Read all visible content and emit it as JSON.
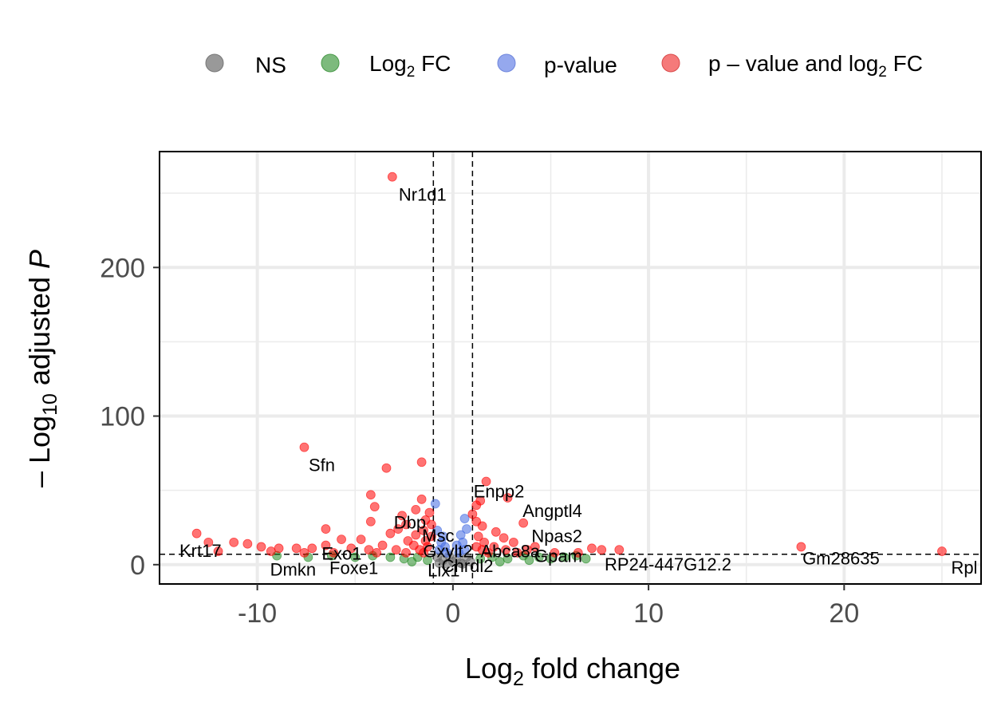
{
  "legend": {
    "items": [
      {
        "key": "ns",
        "label": "NS",
        "color": "#999999"
      },
      {
        "key": "fc",
        "label": "Log",
        "sub": "2",
        "tail": " FC",
        "color": "#5fa858"
      },
      {
        "key": "p",
        "label": "p-value",
        "color": "#8aa3e8"
      },
      {
        "key": "both",
        "label": "p – value and log",
        "sub": "2",
        "tail": " FC",
        "color": "#f07070"
      }
    ]
  },
  "axes": {
    "x_title": {
      "pre": "Log",
      "sub": "2",
      "post": " fold change"
    },
    "y_title": {
      "minus": "– ",
      "pre": "Log",
      "sub": "10",
      "post": " adjusted ",
      "italic": "P"
    }
  },
  "chart_data": {
    "type": "scatter",
    "xlim": [
      -15,
      27
    ],
    "ylim": [
      -13,
      278
    ],
    "x_ticks": [
      -10,
      0,
      10,
      20
    ],
    "x_tick_labels": [
      "-10",
      "0",
      "10",
      "20"
    ],
    "y_ticks": [
      0,
      100,
      200
    ],
    "y_tick_labels": [
      "0",
      "100",
      "200"
    ],
    "grid": true,
    "legend_position": "top",
    "thresholds": {
      "fc_cutoff": [
        -1,
        1
      ],
      "p_cutoff": 7
    },
    "colors": {
      "ns": "#666666",
      "fc": "#228b22",
      "p": "#4169e1",
      "both": "#ff0000"
    },
    "labeled_points": [
      {
        "gene": "Nr1d1",
        "x": -3.1,
        "y": 261
      },
      {
        "gene": "Sfn",
        "x": -7.6,
        "y": 79
      },
      {
        "gene": "Enpp2",
        "x": 1.7,
        "y": 56
      },
      {
        "gene": "Angptl4",
        "x": 2.8,
        "y": 45
      },
      {
        "gene": "Npas2",
        "x": 3.6,
        "y": 28
      },
      {
        "gene": "Dbp",
        "x": -2.2,
        "y": 36
      },
      {
        "gene": "Msc",
        "x": -1.0,
        "y": 30
      },
      {
        "gene": "Gxylt2",
        "x": -0.5,
        "y": 19
      },
      {
        "gene": "Abca8a",
        "x": 1.3,
        "y": 19
      },
      {
        "gene": "Chrdl2",
        "x": 0.5,
        "y": 10
      },
      {
        "gene": "Krt17",
        "x": -12.5,
        "y": 15
      },
      {
        "gene": "Exo1",
        "x": -6.5,
        "y": 13
      },
      {
        "gene": "Dmkn",
        "x": -8.5,
        "y": 5
      },
      {
        "gene": "Foxe1",
        "x": -5.8,
        "y": 6
      },
      {
        "gene": "Lix1",
        "x": 0.1,
        "y": 4
      },
      {
        "gene": "Gpam",
        "x": 4.0,
        "y": 7
      },
      {
        "gene": "RP24-447G12.2",
        "x": 7.0,
        "y": 9
      },
      {
        "gene": "Gm28635",
        "x": 17.8,
        "y": 12
      },
      {
        "gene": "Rpl",
        "x": 25.0,
        "y": 9
      }
    ],
    "points": [
      {
        "x": -3.1,
        "y": 261,
        "g": "both"
      },
      {
        "x": -7.6,
        "y": 79,
        "g": "both"
      },
      {
        "x": -1.6,
        "y": 69,
        "g": "both"
      },
      {
        "x": -3.4,
        "y": 65,
        "g": "both"
      },
      {
        "x": 1.7,
        "y": 56,
        "g": "both"
      },
      {
        "x": -4.2,
        "y": 47,
        "g": "both"
      },
      {
        "x": 2.8,
        "y": 45,
        "g": "both"
      },
      {
        "x": 1.4,
        "y": 43,
        "g": "both"
      },
      {
        "x": -1.6,
        "y": 44,
        "g": "both"
      },
      {
        "x": -0.9,
        "y": 41,
        "g": "p"
      },
      {
        "x": 1.2,
        "y": 40,
        "g": "both"
      },
      {
        "x": -4.0,
        "y": 39,
        "g": "both"
      },
      {
        "x": -1.9,
        "y": 37,
        "g": "both"
      },
      {
        "x": -1.2,
        "y": 35,
        "g": "both"
      },
      {
        "x": 1.0,
        "y": 34,
        "g": "both"
      },
      {
        "x": -2.6,
        "y": 33,
        "g": "both"
      },
      {
        "x": 0.6,
        "y": 31,
        "g": "p"
      },
      {
        "x": -1.4,
        "y": 30,
        "g": "both"
      },
      {
        "x": 1.2,
        "y": 29,
        "g": "both"
      },
      {
        "x": 3.6,
        "y": 28,
        "g": "both"
      },
      {
        "x": -4.2,
        "y": 29,
        "g": "both"
      },
      {
        "x": -2.4,
        "y": 27,
        "g": "both"
      },
      {
        "x": -1.1,
        "y": 27,
        "g": "both"
      },
      {
        "x": 1.5,
        "y": 26,
        "g": "both"
      },
      {
        "x": -2.8,
        "y": 24,
        "g": "both"
      },
      {
        "x": -1.5,
        "y": 23,
        "g": "both"
      },
      {
        "x": -0.8,
        "y": 23,
        "g": "p"
      },
      {
        "x": 0.7,
        "y": 24,
        "g": "p"
      },
      {
        "x": 2.2,
        "y": 22,
        "g": "both"
      },
      {
        "x": -6.5,
        "y": 24,
        "g": "both"
      },
      {
        "x": -3.2,
        "y": 21,
        "g": "both"
      },
      {
        "x": -1.9,
        "y": 20,
        "g": "both"
      },
      {
        "x": -1.1,
        "y": 19,
        "g": "both"
      },
      {
        "x": -0.5,
        "y": 19,
        "g": "p"
      },
      {
        "x": 0.4,
        "y": 20,
        "g": "p"
      },
      {
        "x": 1.3,
        "y": 19,
        "g": "both"
      },
      {
        "x": 2.6,
        "y": 18,
        "g": "both"
      },
      {
        "x": -13.1,
        "y": 21,
        "g": "both"
      },
      {
        "x": -5.7,
        "y": 17,
        "g": "both"
      },
      {
        "x": -4.7,
        "y": 17,
        "g": "both"
      },
      {
        "x": -2.3,
        "y": 16,
        "g": "both"
      },
      {
        "x": -1.4,
        "y": 16,
        "g": "both"
      },
      {
        "x": -0.6,
        "y": 15,
        "g": "p"
      },
      {
        "x": 0.5,
        "y": 15,
        "g": "p"
      },
      {
        "x": 1.6,
        "y": 15,
        "g": "both"
      },
      {
        "x": 3.1,
        "y": 15,
        "g": "both"
      },
      {
        "x": -12.5,
        "y": 15,
        "g": "both"
      },
      {
        "x": -11.2,
        "y": 15,
        "g": "both"
      },
      {
        "x": -10.5,
        "y": 14,
        "g": "both"
      },
      {
        "x": -6.5,
        "y": 13,
        "g": "both"
      },
      {
        "x": -3.6,
        "y": 13,
        "g": "both"
      },
      {
        "x": -2.0,
        "y": 13,
        "g": "both"
      },
      {
        "x": -1.3,
        "y": 12,
        "g": "both"
      },
      {
        "x": -0.4,
        "y": 12,
        "g": "p"
      },
      {
        "x": 0.2,
        "y": 13,
        "g": "p"
      },
      {
        "x": 1.2,
        "y": 12,
        "g": "both"
      },
      {
        "x": 2.1,
        "y": 12,
        "g": "both"
      },
      {
        "x": 4.2,
        "y": 12,
        "g": "both"
      },
      {
        "x": -9.8,
        "y": 12,
        "g": "both"
      },
      {
        "x": -8.9,
        "y": 11,
        "g": "both"
      },
      {
        "x": -8.0,
        "y": 11,
        "g": "both"
      },
      {
        "x": -7.2,
        "y": 11,
        "g": "both"
      },
      {
        "x": -5.2,
        "y": 11,
        "g": "both"
      },
      {
        "x": -4.3,
        "y": 10,
        "g": "both"
      },
      {
        "x": -2.9,
        "y": 10,
        "g": "both"
      },
      {
        "x": -1.7,
        "y": 10,
        "g": "both"
      },
      {
        "x": -0.7,
        "y": 10,
        "g": "p"
      },
      {
        "x": 0.6,
        "y": 10,
        "g": "p"
      },
      {
        "x": 1.5,
        "y": 10,
        "g": "both"
      },
      {
        "x": 2.7,
        "y": 10,
        "g": "both"
      },
      {
        "x": 3.8,
        "y": 10,
        "g": "both"
      },
      {
        "x": 7.1,
        "y": 11,
        "g": "both"
      },
      {
        "x": 7.6,
        "y": 10,
        "g": "both"
      },
      {
        "x": 8.5,
        "y": 10,
        "g": "both"
      },
      {
        "x": 17.8,
        "y": 12,
        "g": "both"
      },
      {
        "x": 25.0,
        "y": 9,
        "g": "both"
      },
      {
        "x": -12.0,
        "y": 9,
        "g": "both"
      },
      {
        "x": -9.3,
        "y": 9,
        "g": "both"
      },
      {
        "x": -7.6,
        "y": 8,
        "g": "both"
      },
      {
        "x": -6.1,
        "y": 8,
        "g": "both"
      },
      {
        "x": -3.9,
        "y": 8,
        "g": "both"
      },
      {
        "x": -2.4,
        "y": 8,
        "g": "both"
      },
      {
        "x": -1.5,
        "y": 8,
        "g": "both"
      },
      {
        "x": 1.8,
        "y": 8,
        "g": "both"
      },
      {
        "x": 3.3,
        "y": 8,
        "g": "both"
      },
      {
        "x": 5.2,
        "y": 8,
        "g": "both"
      },
      {
        "x": 6.4,
        "y": 8,
        "g": "both"
      },
      {
        "x": -0.3,
        "y": 8,
        "g": "p"
      },
      {
        "x": 0.3,
        "y": 8,
        "g": "p"
      },
      {
        "x": -9.0,
        "y": 6,
        "g": "fc"
      },
      {
        "x": -7.4,
        "y": 5,
        "g": "fc"
      },
      {
        "x": -6.2,
        "y": 6,
        "g": "fc"
      },
      {
        "x": -5.0,
        "y": 5,
        "g": "fc"
      },
      {
        "x": -4.1,
        "y": 6,
        "g": "fc"
      },
      {
        "x": -3.2,
        "y": 5,
        "g": "fc"
      },
      {
        "x": -2.5,
        "y": 4,
        "g": "fc"
      },
      {
        "x": -1.8,
        "y": 5,
        "g": "fc"
      },
      {
        "x": -1.3,
        "y": 3,
        "g": "fc"
      },
      {
        "x": 1.4,
        "y": 4,
        "g": "fc"
      },
      {
        "x": 2.0,
        "y": 5,
        "g": "fc"
      },
      {
        "x": 2.8,
        "y": 4,
        "g": "fc"
      },
      {
        "x": 3.6,
        "y": 6,
        "g": "fc"
      },
      {
        "x": 4.4,
        "y": 5,
        "g": "fc"
      },
      {
        "x": 5.0,
        "y": 4,
        "g": "fc"
      },
      {
        "x": 5.7,
        "y": 5,
        "g": "fc"
      },
      {
        "x": 6.3,
        "y": 6,
        "g": "fc"
      },
      {
        "x": 6.8,
        "y": 4,
        "g": "fc"
      },
      {
        "x": -2.1,
        "y": 2,
        "g": "fc"
      },
      {
        "x": 2.4,
        "y": 2,
        "g": "fc"
      },
      {
        "x": 3.9,
        "y": 3,
        "g": "fc"
      },
      {
        "x": -0.8,
        "y": 5,
        "g": "ns"
      },
      {
        "x": -0.5,
        "y": 3,
        "g": "ns"
      },
      {
        "x": -0.2,
        "y": 6,
        "g": "ns"
      },
      {
        "x": 0.0,
        "y": 2,
        "g": "ns"
      },
      {
        "x": 0.2,
        "y": 4,
        "g": "ns"
      },
      {
        "x": 0.4,
        "y": 1,
        "g": "ns"
      },
      {
        "x": 0.7,
        "y": 5,
        "g": "ns"
      },
      {
        "x": 0.9,
        "y": 2,
        "g": "ns"
      },
      {
        "x": -0.7,
        "y": 1,
        "g": "ns"
      },
      {
        "x": -0.3,
        "y": 0.5,
        "g": "ns"
      },
      {
        "x": 0.5,
        "y": 0.5,
        "g": "ns"
      }
    ]
  }
}
